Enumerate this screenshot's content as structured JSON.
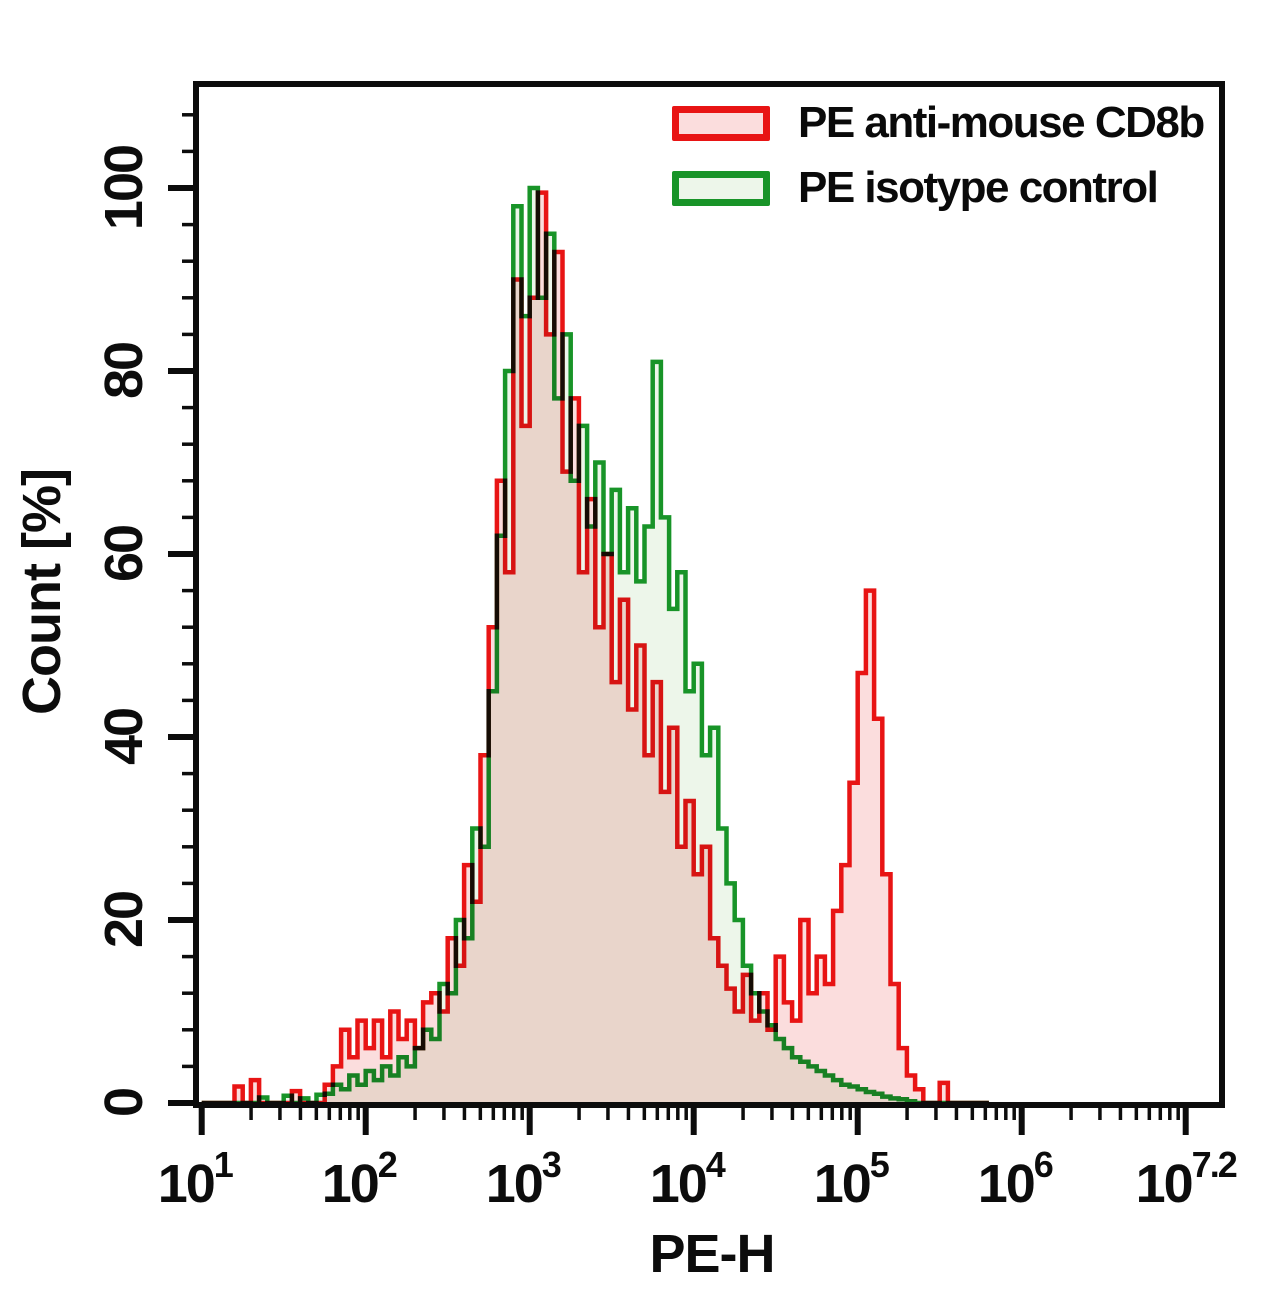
{
  "figure": {
    "background": "#ffffff"
  },
  "legend": {
    "items": [
      {
        "label": "PE anti-mouse CD8b",
        "line_color": "#e81414",
        "fill_color": "#fbdddd"
      },
      {
        "label": "PE isotype control",
        "line_color": "#189428",
        "fill_color": "#edf6ea"
      }
    ]
  },
  "chart_data": {
    "type": "area",
    "subtype": "flow-cytometry-overlay-histogram",
    "title": "",
    "xlabel": "PE-H",
    "ylabel": "Count [%]",
    "x_scale": "log10",
    "xlim_log10": [
      1,
      7.22
    ],
    "ylim": [
      0,
      111
    ],
    "grid": false,
    "legend_position": "top-right",
    "y_ticks": [
      0,
      20,
      40,
      60,
      80,
      100
    ],
    "y_minor_tick_step": 4,
    "x_major_ticks_log10": [
      1,
      2,
      3,
      4,
      5,
      6,
      7
    ],
    "x_tick_labels": [
      {
        "base": "10",
        "exp": "1",
        "log10": 1
      },
      {
        "base": "10",
        "exp": "2",
        "log10": 2
      },
      {
        "base": "10",
        "exp": "3",
        "log10": 3
      },
      {
        "base": "10",
        "exp": "4",
        "log10": 4
      },
      {
        "base": "10",
        "exp": "5",
        "log10": 5
      },
      {
        "base": "10",
        "exp": "6",
        "log10": 6
      },
      {
        "base": "10",
        "exp": "7.2",
        "log10": 7.1
      }
    ],
    "x_log10_start": 1.0,
    "x_log10_step": 0.05,
    "series": [
      {
        "name": "PE isotype control",
        "line_color": "#189428",
        "fill_color": "#edf6ea",
        "values": [
          0,
          0,
          0,
          0,
          0,
          0,
          0,
          0.6,
          0,
          0,
          0.8,
          0,
          0.5,
          0,
          0.9,
          1,
          2,
          1.5,
          3,
          2,
          3.5,
          2.5,
          4,
          3,
          5,
          4,
          6,
          8,
          7,
          13,
          12,
          20,
          18,
          30,
          28,
          45,
          62,
          80,
          98,
          86,
          100,
          88,
          95,
          77,
          84,
          68,
          74,
          63,
          70,
          60,
          67,
          58,
          65,
          57,
          63,
          81,
          64,
          54,
          58,
          45,
          48,
          38,
          41,
          30,
          24,
          20,
          15,
          12,
          10,
          8.5,
          7,
          6,
          5,
          4.5,
          4,
          3.5,
          3,
          2.5,
          2,
          1.8,
          1.5,
          1.2,
          1,
          0.7,
          0.5,
          0.4,
          0.2,
          0,
          0,
          0,
          0,
          0,
          0,
          0,
          0,
          0
        ]
      },
      {
        "name": "PE anti-mouse CD8b",
        "line_color": "#e81414",
        "fill_color": "#fbdddd",
        "values": [
          0,
          0,
          0,
          0,
          1.8,
          0,
          2.5,
          0,
          0,
          0,
          0,
          1.3,
          0,
          0,
          0,
          2,
          4,
          8,
          5,
          9,
          6,
          9,
          5,
          10,
          7,
          9,
          6,
          11,
          12,
          10,
          18,
          15,
          26,
          22,
          38,
          52,
          68,
          58,
          90,
          74,
          88,
          99.5,
          84,
          93,
          69,
          77,
          58,
          66,
          52,
          60,
          46,
          55,
          43,
          50,
          38,
          46,
          34,
          41,
          28,
          33,
          25,
          28,
          18,
          15,
          12.5,
          10,
          14,
          9,
          12,
          8,
          16,
          11,
          9,
          20,
          12,
          16,
          13,
          21,
          26,
          35,
          47,
          56,
          42,
          25,
          13,
          6,
          3,
          1.5,
          0,
          0,
          2.2,
          0,
          0,
          0,
          0,
          0
        ]
      }
    ]
  }
}
